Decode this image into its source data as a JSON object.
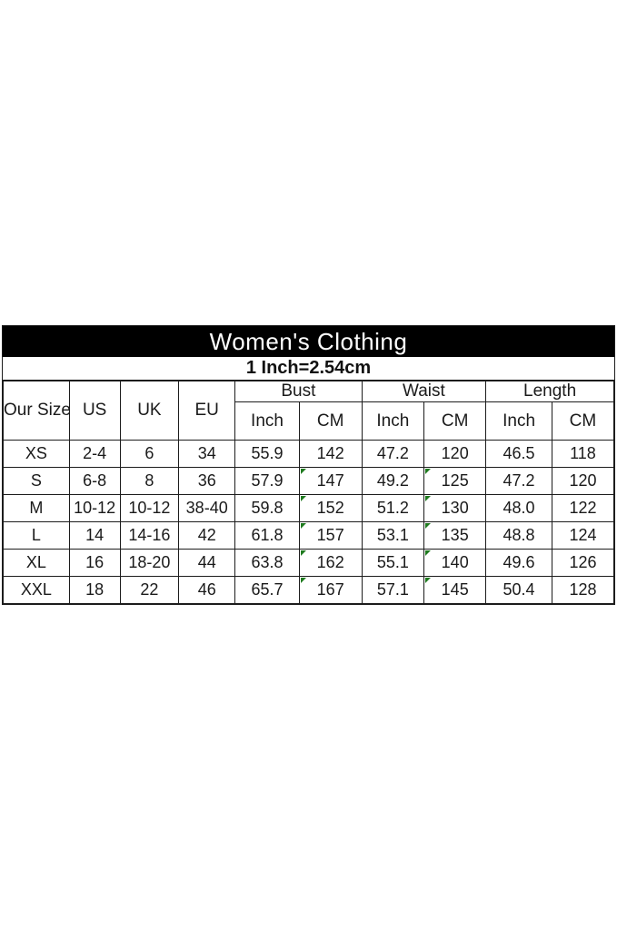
{
  "header": {
    "title": "Women's Clothing",
    "subtitle": "1 Inch=2.54cm"
  },
  "colors": {
    "title_bar_bg": "#000000",
    "title_text": "#ffffff",
    "table_border": "#1c1c1c",
    "cell_text": "#1a1a1a",
    "flag_triangle_green": "#1e7a1e"
  },
  "table": {
    "simple_headers": [
      "Our Size",
      "US",
      "UK",
      "EU"
    ],
    "group_headers": [
      "Bust",
      "Waist",
      "Length"
    ],
    "unit_headers": [
      "Inch",
      "CM",
      "Inch",
      "CM",
      "Inch",
      "CM"
    ],
    "columns": [
      "size",
      "us",
      "uk",
      "eu",
      "bust_inch",
      "bust_cm",
      "waist_inch",
      "waist_cm",
      "length_inch",
      "length_cm"
    ],
    "rows": [
      {
        "values": {
          "size": "XS",
          "us": "2-4",
          "uk": "6",
          "eu": "34",
          "bust_inch": "55.9",
          "bust_cm": "142",
          "waist_inch": "47.2",
          "waist_cm": "120",
          "length_inch": "46.5",
          "length_cm": "118"
        },
        "flagged": []
      },
      {
        "values": {
          "size": "S",
          "us": "6-8",
          "uk": "8",
          "eu": "36",
          "bust_inch": "57.9",
          "bust_cm": "147",
          "waist_inch": "49.2",
          "waist_cm": "125",
          "length_inch": "47.2",
          "length_cm": "120"
        },
        "flagged": [
          "bust_cm",
          "waist_cm"
        ]
      },
      {
        "values": {
          "size": "M",
          "us": "10-12",
          "uk": "10-12",
          "eu": "38-40",
          "bust_inch": "59.8",
          "bust_cm": "152",
          "waist_inch": "51.2",
          "waist_cm": "130",
          "length_inch": "48.0",
          "length_cm": "122"
        },
        "flagged": [
          "bust_cm",
          "waist_cm"
        ]
      },
      {
        "values": {
          "size": "L",
          "us": "14",
          "uk": "14-16",
          "eu": "42",
          "bust_inch": "61.8",
          "bust_cm": "157",
          "waist_inch": "53.1",
          "waist_cm": "135",
          "length_inch": "48.8",
          "length_cm": "124"
        },
        "flagged": [
          "bust_cm",
          "waist_cm"
        ]
      },
      {
        "values": {
          "size": "XL",
          "us": "16",
          "uk": "18-20",
          "eu": "44",
          "bust_inch": "63.8",
          "bust_cm": "162",
          "waist_inch": "55.1",
          "waist_cm": "140",
          "length_inch": "49.6",
          "length_cm": "126"
        },
        "flagged": [
          "bust_cm",
          "waist_cm"
        ]
      },
      {
        "values": {
          "size": "XXL",
          "us": "18",
          "uk": "22",
          "eu": "46",
          "bust_inch": "65.7",
          "bust_cm": "167",
          "waist_inch": "57.1",
          "waist_cm": "145",
          "length_inch": "50.4",
          "length_cm": "128"
        },
        "flagged": [
          "bust_cm",
          "waist_cm"
        ]
      }
    ]
  }
}
